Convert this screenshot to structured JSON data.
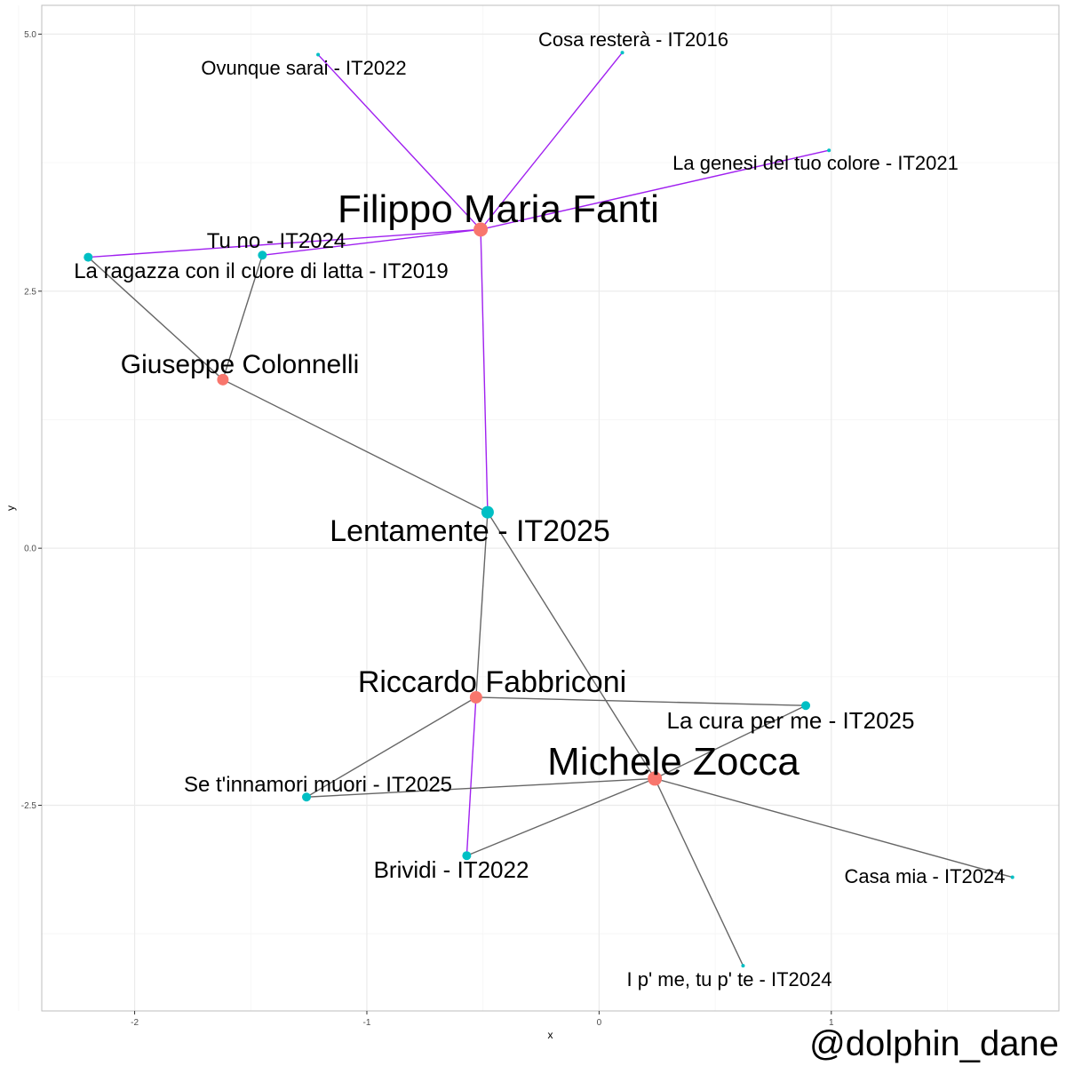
{
  "axes": {
    "xlabel": "x",
    "ylabel": "y",
    "xlim": [
      -2.4,
      1.98
    ],
    "ylim": [
      -4.5,
      5.28
    ],
    "xticks": [
      {
        "v": -2,
        "label": "-2"
      },
      {
        "v": -1,
        "label": "-1"
      },
      {
        "v": 0,
        "label": "0"
      },
      {
        "v": 1,
        "label": "1"
      }
    ],
    "yticks": [
      {
        "v": -2.5,
        "label": "-2.5"
      },
      {
        "v": 0,
        "label": "0.0"
      },
      {
        "v": 2.5,
        "label": "2.5"
      },
      {
        "v": 5,
        "label": "5.0"
      }
    ],
    "grid": true
  },
  "colors": {
    "person": "#F8766D",
    "song": "#00BFC4",
    "edge_default": "#666666",
    "edge_highlight": "#A020F0",
    "grid_major": "#EBEBEB",
    "grid_minor": "#F5F5F5",
    "panel_border": "#BDBDBD"
  },
  "watermark": "@dolphin_dane",
  "nodes": [
    {
      "id": "fanti",
      "label": "Filippo Maria Fanti",
      "kind": "person",
      "x": -0.51,
      "y": 3.1,
      "r": 8,
      "fs": 44
    },
    {
      "id": "colonnelli",
      "label": "Giuseppe Colonnelli",
      "kind": "person",
      "x": -1.62,
      "y": 1.64,
      "r": 6.5,
      "fs": 30
    },
    {
      "id": "fabbriconi",
      "label": "Riccardo Fabbriconi",
      "kind": "person",
      "x": -0.53,
      "y": -1.45,
      "r": 7,
      "fs": 34
    },
    {
      "id": "zocca",
      "label": "Michele Zocca",
      "kind": "person",
      "x": 0.24,
      "y": -2.24,
      "r": 8,
      "fs": 44
    },
    {
      "id": "lentamente",
      "label": "Lentamente - IT2025",
      "kind": "song",
      "x": -0.48,
      "y": 0.35,
      "r": 7,
      "fs": 34
    },
    {
      "id": "ovunque",
      "label": "Ovunque sarai - IT2022",
      "kind": "song",
      "x": -1.21,
      "y": 4.8,
      "r": 2,
      "fs": 22
    },
    {
      "id": "cosa",
      "label": "Cosa resterà - IT2016",
      "kind": "song",
      "x": 0.1,
      "y": 4.82,
      "r": 2,
      "fs": 22
    },
    {
      "id": "genesi",
      "label": "La genesi del tuo colore - IT2021",
      "kind": "song",
      "x": 0.99,
      "y": 3.87,
      "r": 2,
      "fs": 22
    },
    {
      "id": "tuno",
      "label": "Tu no - IT2024",
      "kind": "song",
      "x": -1.45,
      "y": 2.85,
      "r": 5,
      "fs": 24
    },
    {
      "id": "ragazza",
      "label": "La ragazza con il cuore di latta - IT2019",
      "kind": "song",
      "x": -2.2,
      "y": 2.83,
      "r": 5,
      "fs": 24
    },
    {
      "id": "cura",
      "label": "La cura per me - IT2025",
      "kind": "song",
      "x": 0.89,
      "y": -1.53,
      "r": 5,
      "fs": 26
    },
    {
      "id": "innamori",
      "label": "Se t'innamori muori - IT2025",
      "kind": "song",
      "x": -1.26,
      "y": -2.42,
      "r": 5,
      "fs": 24
    },
    {
      "id": "brividi",
      "label": "Brividi - IT2022",
      "kind": "song",
      "x": -0.57,
      "y": -2.99,
      "r": 5,
      "fs": 26
    },
    {
      "id": "casamia",
      "label": "Casa mia - IT2024",
      "kind": "song",
      "x": 1.78,
      "y": -3.2,
      "r": 2,
      "fs": 22
    },
    {
      "id": "ipme",
      "label": "I p' me, tu p' te - IT2024",
      "kind": "song",
      "x": 0.62,
      "y": -4.06,
      "r": 2,
      "fs": 22
    }
  ],
  "edges": [
    {
      "from": "fanti",
      "to": "ovunque",
      "highlight": true
    },
    {
      "from": "fanti",
      "to": "cosa",
      "highlight": true
    },
    {
      "from": "fanti",
      "to": "genesi",
      "highlight": true
    },
    {
      "from": "fanti",
      "to": "tuno",
      "highlight": true
    },
    {
      "from": "fanti",
      "to": "ragazza",
      "highlight": true
    },
    {
      "from": "fanti",
      "to": "lentamente",
      "highlight": true
    },
    {
      "from": "colonnelli",
      "to": "tuno",
      "highlight": false
    },
    {
      "from": "colonnelli",
      "to": "ragazza",
      "highlight": false
    },
    {
      "from": "colonnelli",
      "to": "lentamente",
      "highlight": false
    },
    {
      "from": "fabbriconi",
      "to": "lentamente",
      "highlight": false
    },
    {
      "from": "fabbriconi",
      "to": "cura",
      "highlight": false
    },
    {
      "from": "fabbriconi",
      "to": "innamori",
      "highlight": false
    },
    {
      "from": "fabbriconi",
      "to": "brividi",
      "highlight": true
    },
    {
      "from": "zocca",
      "to": "lentamente",
      "highlight": false
    },
    {
      "from": "zocca",
      "to": "cura",
      "highlight": false
    },
    {
      "from": "zocca",
      "to": "innamori",
      "highlight": false
    },
    {
      "from": "zocca",
      "to": "brividi",
      "highlight": false
    },
    {
      "from": "zocca",
      "to": "casamia",
      "highlight": false
    },
    {
      "from": "zocca",
      "to": "ipme",
      "highlight": false
    }
  ]
}
